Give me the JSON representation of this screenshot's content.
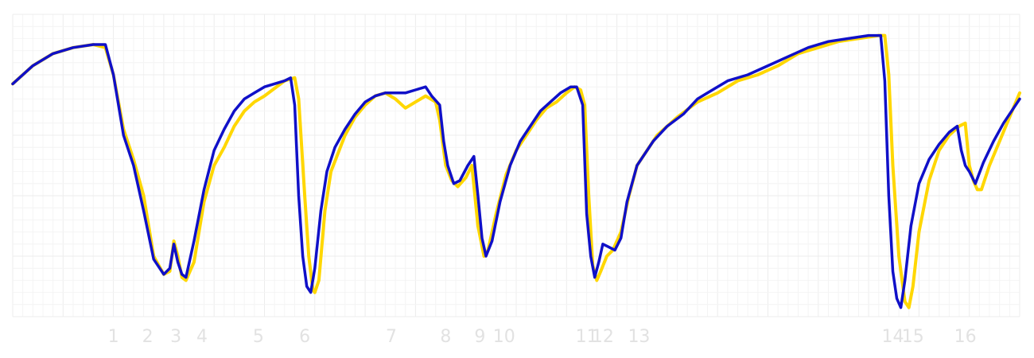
{
  "chart_data": {
    "type": "line",
    "title": "",
    "xlabel": "",
    "ylabel": "",
    "grid": true,
    "legend": "none",
    "xlim": [
      0,
      500
    ],
    "ylim": [
      0,
      100
    ],
    "x_ticks": [
      {
        "x": 50,
        "label": "1"
      },
      {
        "x": 67,
        "label": "2"
      },
      {
        "x": 81,
        "label": "3"
      },
      {
        "x": 94,
        "label": "4"
      },
      {
        "x": 122,
        "label": "5"
      },
      {
        "x": 145,
        "label": "6"
      },
      {
        "x": 188,
        "label": "7"
      },
      {
        "x": 215,
        "label": "8"
      },
      {
        "x": 232,
        "label": "9"
      },
      {
        "x": 244,
        "label": "10"
      },
      {
        "x": 285,
        "label": "11"
      },
      {
        "x": 293,
        "label": "12"
      },
      {
        "x": 311,
        "label": "13"
      },
      {
        "x": 437,
        "label": "14"
      },
      {
        "x": 447,
        "label": "15"
      },
      {
        "x": 473,
        "label": "16"
      }
    ],
    "series": [
      {
        "color": "#ffd700",
        "points": [
          [
            0,
            77
          ],
          [
            10,
            83
          ],
          [
            20,
            87
          ],
          [
            30,
            89
          ],
          [
            40,
            90
          ],
          [
            46,
            89
          ],
          [
            50,
            80
          ],
          [
            55,
            62
          ],
          [
            60,
            52
          ],
          [
            65,
            40
          ],
          [
            70,
            20
          ],
          [
            75,
            14
          ],
          [
            78,
            15
          ],
          [
            80,
            25
          ],
          [
            82,
            20
          ],
          [
            84,
            13
          ],
          [
            86,
            12
          ],
          [
            90,
            18
          ],
          [
            95,
            38
          ],
          [
            100,
            50
          ],
          [
            105,
            56
          ],
          [
            110,
            63
          ],
          [
            115,
            68
          ],
          [
            120,
            71
          ],
          [
            125,
            73
          ],
          [
            135,
            78
          ],
          [
            140,
            79
          ],
          [
            142,
            72
          ],
          [
            145,
            40
          ],
          [
            147,
            20
          ],
          [
            149,
            9
          ],
          [
            150,
            8
          ],
          [
            152,
            12
          ],
          [
            155,
            35
          ],
          [
            158,
            48
          ],
          [
            165,
            60
          ],
          [
            170,
            66
          ],
          [
            175,
            70
          ],
          [
            180,
            73
          ],
          [
            185,
            74
          ],
          [
            190,
            72
          ],
          [
            195,
            69
          ],
          [
            200,
            71
          ],
          [
            205,
            73
          ],
          [
            210,
            71
          ],
          [
            212,
            65
          ],
          [
            215,
            50
          ],
          [
            218,
            45
          ],
          [
            221,
            43
          ],
          [
            225,
            46
          ],
          [
            228,
            50
          ],
          [
            231,
            30
          ],
          [
            234,
            20
          ],
          [
            236,
            22
          ],
          [
            240,
            34
          ],
          [
            245,
            47
          ],
          [
            250,
            55
          ],
          [
            255,
            60
          ],
          [
            260,
            65
          ],
          [
            265,
            69
          ],
          [
            270,
            71
          ],
          [
            275,
            74
          ],
          [
            279,
            76
          ],
          [
            282,
            75
          ],
          [
            284,
            70
          ],
          [
            286,
            40
          ],
          [
            288,
            17
          ],
          [
            290,
            12
          ],
          [
            292,
            15
          ],
          [
            295,
            20
          ],
          [
            298,
            22
          ],
          [
            302,
            28
          ],
          [
            306,
            40
          ],
          [
            310,
            50
          ],
          [
            320,
            60
          ],
          [
            330,
            66
          ],
          [
            340,
            71
          ],
          [
            350,
            74
          ],
          [
            360,
            78
          ],
          [
            370,
            80
          ],
          [
            380,
            83
          ],
          [
            390,
            87
          ],
          [
            400,
            89
          ],
          [
            410,
            91
          ],
          [
            420,
            92
          ],
          [
            430,
            93
          ],
          [
            433,
            93
          ],
          [
            435,
            80
          ],
          [
            437,
            50
          ],
          [
            440,
            20
          ],
          [
            443,
            5
          ],
          [
            445,
            3
          ],
          [
            447,
            10
          ],
          [
            450,
            28
          ],
          [
            455,
            45
          ],
          [
            460,
            55
          ],
          [
            465,
            60
          ],
          [
            470,
            63
          ],
          [
            473,
            64
          ],
          [
            475,
            50
          ],
          [
            477,
            45
          ],
          [
            479,
            42
          ],
          [
            481,
            42
          ],
          [
            485,
            50
          ],
          [
            490,
            58
          ],
          [
            495,
            66
          ],
          [
            500,
            74
          ]
        ]
      },
      {
        "color": "#1010c8",
        "points": [
          [
            0,
            77
          ],
          [
            10,
            83
          ],
          [
            20,
            87
          ],
          [
            30,
            89
          ],
          [
            40,
            90
          ],
          [
            46,
            90
          ],
          [
            50,
            80
          ],
          [
            55,
            60
          ],
          [
            60,
            50
          ],
          [
            65,
            35
          ],
          [
            70,
            19
          ],
          [
            75,
            14
          ],
          [
            78,
            16
          ],
          [
            80,
            24
          ],
          [
            82,
            18
          ],
          [
            84,
            14
          ],
          [
            86,
            13
          ],
          [
            90,
            25
          ],
          [
            95,
            42
          ],
          [
            100,
            55
          ],
          [
            105,
            62
          ],
          [
            110,
            68
          ],
          [
            115,
            72
          ],
          [
            120,
            74
          ],
          [
            125,
            76
          ],
          [
            135,
            78
          ],
          [
            138,
            79
          ],
          [
            140,
            70
          ],
          [
            142,
            40
          ],
          [
            144,
            20
          ],
          [
            146,
            10
          ],
          [
            148,
            8
          ],
          [
            150,
            16
          ],
          [
            153,
            35
          ],
          [
            156,
            48
          ],
          [
            160,
            56
          ],
          [
            165,
            62
          ],
          [
            170,
            67
          ],
          [
            175,
            71
          ],
          [
            180,
            73
          ],
          [
            185,
            74
          ],
          [
            190,
            74
          ],
          [
            195,
            74
          ],
          [
            200,
            75
          ],
          [
            205,
            76
          ],
          [
            208,
            73
          ],
          [
            212,
            70
          ],
          [
            214,
            58
          ],
          [
            216,
            50
          ],
          [
            219,
            44
          ],
          [
            222,
            45
          ],
          [
            226,
            50
          ],
          [
            229,
            53
          ],
          [
            231,
            40
          ],
          [
            233,
            26
          ],
          [
            235,
            20
          ],
          [
            238,
            25
          ],
          [
            242,
            38
          ],
          [
            247,
            50
          ],
          [
            252,
            58
          ],
          [
            257,
            63
          ],
          [
            262,
            68
          ],
          [
            267,
            71
          ],
          [
            272,
            74
          ],
          [
            277,
            76
          ],
          [
            280,
            76
          ],
          [
            283,
            70
          ],
          [
            285,
            34
          ],
          [
            287,
            20
          ],
          [
            289,
            13
          ],
          [
            291,
            18
          ],
          [
            293,
            24
          ],
          [
            296,
            23
          ],
          [
            299,
            22
          ],
          [
            302,
            26
          ],
          [
            305,
            38
          ],
          [
            310,
            50
          ],
          [
            318,
            58
          ],
          [
            325,
            63
          ],
          [
            333,
            67
          ],
          [
            340,
            72
          ],
          [
            345,
            74
          ],
          [
            355,
            78
          ],
          [
            365,
            80
          ],
          [
            375,
            83
          ],
          [
            385,
            86
          ],
          [
            395,
            89
          ],
          [
            405,
            91
          ],
          [
            415,
            92
          ],
          [
            425,
            93
          ],
          [
            431,
            93
          ],
          [
            433,
            78
          ],
          [
            435,
            40
          ],
          [
            437,
            15
          ],
          [
            439,
            6
          ],
          [
            441,
            3
          ],
          [
            443,
            12
          ],
          [
            446,
            30
          ],
          [
            450,
            44
          ],
          [
            455,
            52
          ],
          [
            460,
            57
          ],
          [
            465,
            61
          ],
          [
            469,
            63
          ],
          [
            471,
            55
          ],
          [
            473,
            50
          ],
          [
            475,
            48
          ],
          [
            478,
            44
          ],
          [
            482,
            51
          ],
          [
            487,
            58
          ],
          [
            492,
            64
          ],
          [
            497,
            69
          ],
          [
            500,
            72
          ]
        ]
      }
    ]
  }
}
